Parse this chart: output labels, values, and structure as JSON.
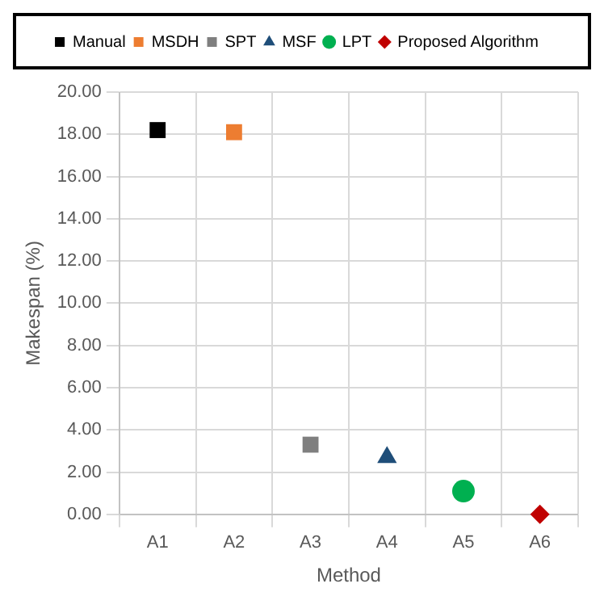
{
  "chart_data": {
    "type": "scatter",
    "xlabel": "Method",
    "ylabel": "Makespan (%)",
    "categories": [
      "A1",
      "A2",
      "A3",
      "A4",
      "A5",
      "A6"
    ],
    "series": [
      {
        "name": "Manual",
        "color": "#000000",
        "marker": "square",
        "values": [
          18.2,
          null,
          null,
          null,
          null,
          null
        ]
      },
      {
        "name": "MSDH",
        "color": "#ed7d31",
        "marker": "square",
        "values": [
          null,
          18.1,
          null,
          null,
          null,
          null
        ]
      },
      {
        "name": "SPT",
        "color": "#7f7f7f",
        "marker": "square",
        "values": [
          null,
          null,
          3.3,
          null,
          null,
          null
        ]
      },
      {
        "name": "MSF",
        "color": "#1f4e79",
        "marker": "triangle",
        "values": [
          null,
          null,
          null,
          2.7,
          null,
          null
        ]
      },
      {
        "name": "LPT",
        "color": "#00b050",
        "marker": "circle",
        "values": [
          null,
          null,
          null,
          null,
          1.1,
          null
        ]
      },
      {
        "name": "Proposed Algorithm",
        "color": "#c00000",
        "marker": "diamond",
        "values": [
          null,
          null,
          null,
          null,
          null,
          0.0
        ]
      }
    ],
    "ylim": [
      0,
      20
    ],
    "yticks": [
      {
        "value": 0,
        "label": "0.00"
      },
      {
        "value": 2,
        "label": "2.00"
      },
      {
        "value": 4,
        "label": "4.00"
      },
      {
        "value": 6,
        "label": "6.00"
      },
      {
        "value": 8,
        "label": "8.00"
      },
      {
        "value": 10,
        "label": "10.00"
      },
      {
        "value": 12,
        "label": "12.00"
      },
      {
        "value": 14,
        "label": "14.00"
      },
      {
        "value": 16,
        "label": "16.00"
      },
      {
        "value": 18,
        "label": "18.00"
      },
      {
        "value": 20,
        "label": "20.00"
      }
    ],
    "grid": true,
    "legend": "top"
  }
}
